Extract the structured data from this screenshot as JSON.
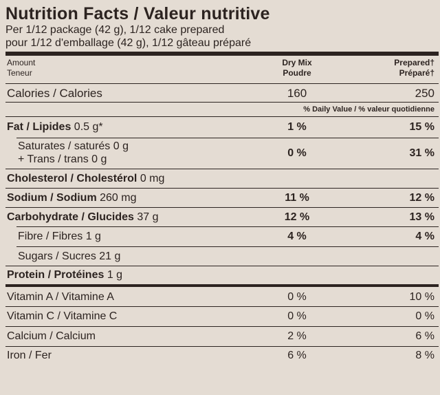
{
  "title": "Nutrition Facts / Valeur nutritive",
  "serving_en": "Per 1/12 package (42 g), 1/12 cake prepared",
  "serving_fr": "pour 1/12 d'emballage (42 g), 1/12 gâteau préparé",
  "header": {
    "amount_en": "Amount",
    "amount_fr": "Teneur",
    "col1_en": "Dry Mix",
    "col1_fr": "Poudre",
    "col2_en": "Prepared†",
    "col2_fr": "Préparé†"
  },
  "calories": {
    "label": "Calories / Calories",
    "dry": "160",
    "prepared": "250"
  },
  "dv_header": "% Daily Value / % valeur quotidienne",
  "fat": {
    "name": "Fat / Lipides",
    "amount": "0.5 g*",
    "dry": "1 %",
    "prepared": "15 %"
  },
  "saturates": {
    "label": "Saturates / saturés 0 g",
    "dry": "0 %",
    "prepared": "31 %"
  },
  "trans": {
    "label": "+ Trans / trans 0 g"
  },
  "cholesterol": {
    "name": "Cholesterol / Cholestérol",
    "amount": "0 mg"
  },
  "sodium": {
    "name": "Sodium / Sodium",
    "amount": "260 mg",
    "dry": "11 %",
    "prepared": "12 %"
  },
  "carbohydrate": {
    "name": "Carbohydrate / Glucides",
    "amount": "37 g",
    "dry": "12 %",
    "prepared": "13 %"
  },
  "fibre": {
    "label": "Fibre / Fibres 1 g",
    "dry": "4 %",
    "prepared": "4 %"
  },
  "sugars": {
    "label": "Sugars / Sucres 21 g"
  },
  "protein": {
    "name": "Protein / Protéines",
    "amount": "1 g"
  },
  "vitamins": [
    {
      "label": "Vitamin A / Vitamine A",
      "dry": "0 %",
      "prepared": "10 %"
    },
    {
      "label": "Vitamin C / Vitamine C",
      "dry": "0 %",
      "prepared": "0 %"
    },
    {
      "label": "Calcium / Calcium",
      "dry": "2 %",
      "prepared": "6 %"
    },
    {
      "label": "Iron / Fer",
      "dry": "6 %",
      "prepared": "8 %"
    }
  ]
}
